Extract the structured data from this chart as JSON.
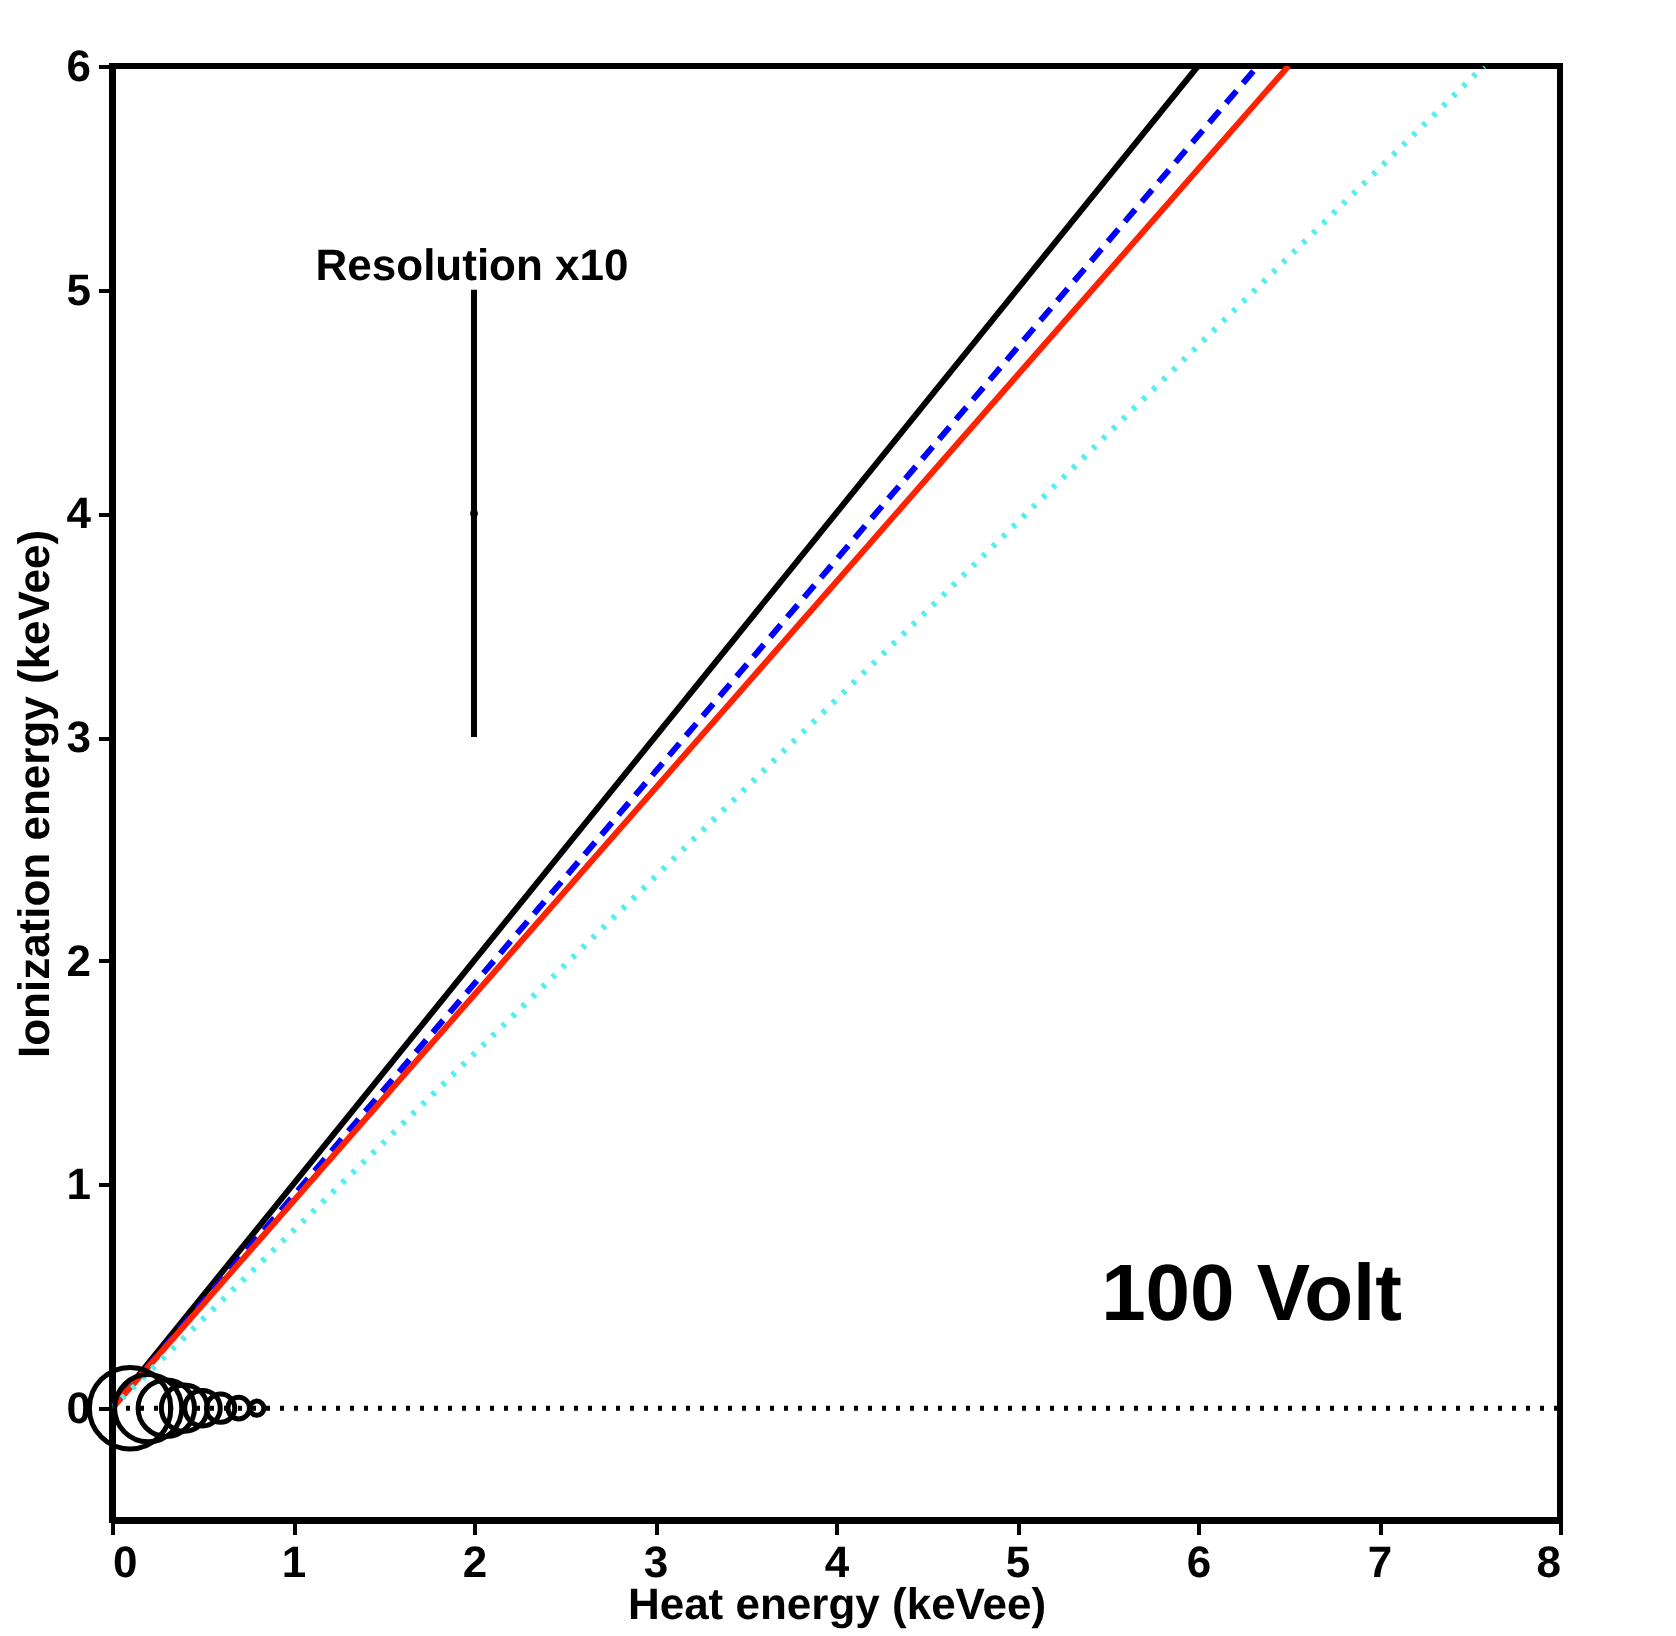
{
  "chart_data": {
    "type": "line",
    "xlabel": "Heat energy (keVee)",
    "ylabel": "Ionization energy (keVee)",
    "xlim": [
      0,
      8
    ],
    "ylim": [
      -0.5,
      6
    ],
    "xticks": [
      0,
      1,
      2,
      3,
      4,
      5,
      6,
      7,
      8
    ],
    "yticks": [
      0,
      1,
      2,
      3,
      4,
      5,
      6
    ],
    "grid": false,
    "series": [
      {
        "color": "#000000",
        "x": [
          0,
          6.0
        ],
        "values": [
          0,
          6
        ],
        "line_style": "solid"
      },
      {
        "color": "#0000ff",
        "x": [
          0,
          6.33
        ],
        "values": [
          0,
          6
        ],
        "line_style": "dashed"
      },
      {
        "color": "#ff2200",
        "x": [
          0,
          6.5
        ],
        "values": [
          0,
          6
        ],
        "line_style": "solid"
      },
      {
        "color": "#55eeee",
        "x": [
          0,
          7.58
        ],
        "values": [
          0,
          6
        ],
        "line_style": "dotted"
      },
      {
        "type": "bubble",
        "color": "#000000",
        "x": [
          0.1,
          0.2,
          0.3,
          0.4,
          0.5,
          0.6,
          0.7,
          0.8
        ],
        "values": [
          0,
          0,
          0,
          0,
          0,
          0,
          0,
          0
        ],
        "sizes": [
          1,
          0.68,
          0.48,
          0.32,
          0.19,
          0.12,
          0.07,
          0.03
        ]
      },
      {
        "type": "scatter",
        "color": "#000000",
        "x": [
          2
        ],
        "values": [
          4
        ],
        "errors": [
          1
        ]
      }
    ],
    "ref_lines": [
      {
        "axis": "y",
        "value": 0,
        "line_style": "dotted",
        "color": "#000000"
      }
    ],
    "annotations": [
      "Resolution x10",
      "100 Volt"
    ]
  }
}
